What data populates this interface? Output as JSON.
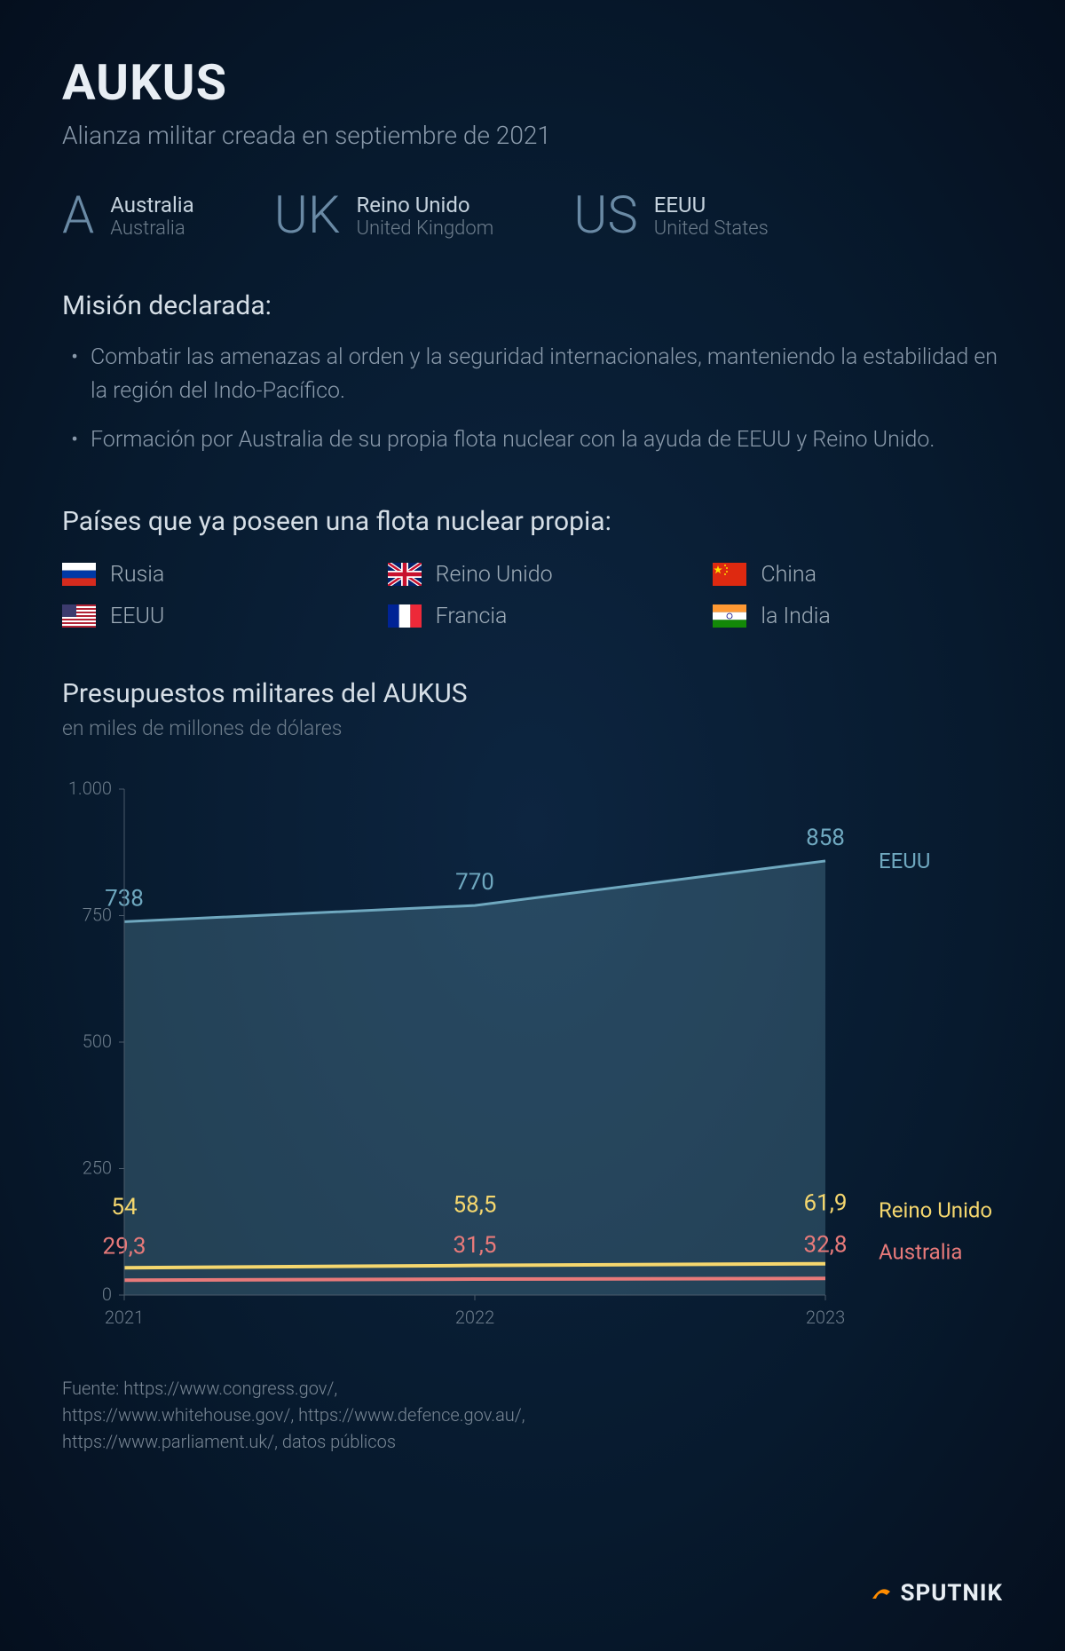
{
  "title": "AUKUS",
  "subtitle": "Alianza militar creada en septiembre de 2021",
  "members": [
    {
      "code": "A",
      "name": "Australia",
      "sub": "Australia"
    },
    {
      "code": "UK",
      "name": "Reino Unido",
      "sub": "United Kingdom"
    },
    {
      "code": "US",
      "name": "EEUU",
      "sub": "United States"
    }
  ],
  "mission_heading": "Misión declarada:",
  "mission_items": [
    "Combatir las amenazas al orden y la seguridad internacionales, manteniendo la estabilidad en la región del Indo-Pacífico.",
    "Formación por Australia de su propia flota nuclear con la ayuda de EEUU y Reino Unido."
  ],
  "nuclear_heading": "Países que ya poseen una flota nuclear propia:",
  "nuclear_countries": [
    {
      "label": "Rusia",
      "flag": "ru"
    },
    {
      "label": "Reino Unido",
      "flag": "uk"
    },
    {
      "label": "China",
      "flag": "cn"
    },
    {
      "label": "EEUU",
      "flag": "us"
    },
    {
      "label": "Francia",
      "flag": "fr"
    },
    {
      "label": "la India",
      "flag": "in"
    }
  ],
  "budget_heading": "Presupuestos militares del AUKUS",
  "budget_sub": "en miles de millones de dólares",
  "chart": {
    "type": "area-line",
    "years": [
      "2021",
      "2022",
      "2023"
    ],
    "ylim": [
      0,
      1000
    ],
    "yticks": [
      0,
      250,
      500,
      750,
      1000
    ],
    "ytick_labels": [
      "0",
      "250",
      "500",
      "750",
      "1.000"
    ],
    "series": [
      {
        "name": "EEUU",
        "values": [
          738,
          770,
          858
        ],
        "value_labels": [
          "738",
          "770",
          "858"
        ],
        "color": "#6fa8bf",
        "fill_opacity": 0.28,
        "line_width": 3,
        "label_color": "#6fa8bf"
      },
      {
        "name": "Reino Unido",
        "values": [
          54,
          58.5,
          61.9
        ],
        "value_labels": [
          "54",
          "58,5",
          "61,9"
        ],
        "color": "#f5d76e",
        "fill_opacity": 0,
        "line_width": 4,
        "label_color": "#f5d76e"
      },
      {
        "name": "Australia",
        "values": [
          29.3,
          31.5,
          32.8
        ],
        "value_labels": [
          "29,3",
          "31,5",
          "32,8"
        ],
        "color": "#e87a7a",
        "fill_opacity": 0,
        "line_width": 4,
        "label_color": "#e87a7a"
      }
    ],
    "axis_color": "#4a5a6a",
    "grid_color": "#2a3a4a",
    "tick_color": "#6d7d8c",
    "value_fontsize": 26,
    "series_label_fontsize": 24,
    "axis_fontsize": 20
  },
  "source_label": "Fuente:",
  "source_lines": [
    "https://www.congress.gov/,",
    "https://www.whitehouse.gov/, https://www.defence.gov.au/,",
    "https://www.parliament.uk/, datos públicos"
  ],
  "logo_text": "SPUTNIK",
  "colors": {
    "bg_center": "#0d2540",
    "bg_edge": "#050f1e",
    "text_primary": "#e8eef4",
    "text_secondary": "#8a9aab",
    "text_muted": "#6d7d8c"
  }
}
